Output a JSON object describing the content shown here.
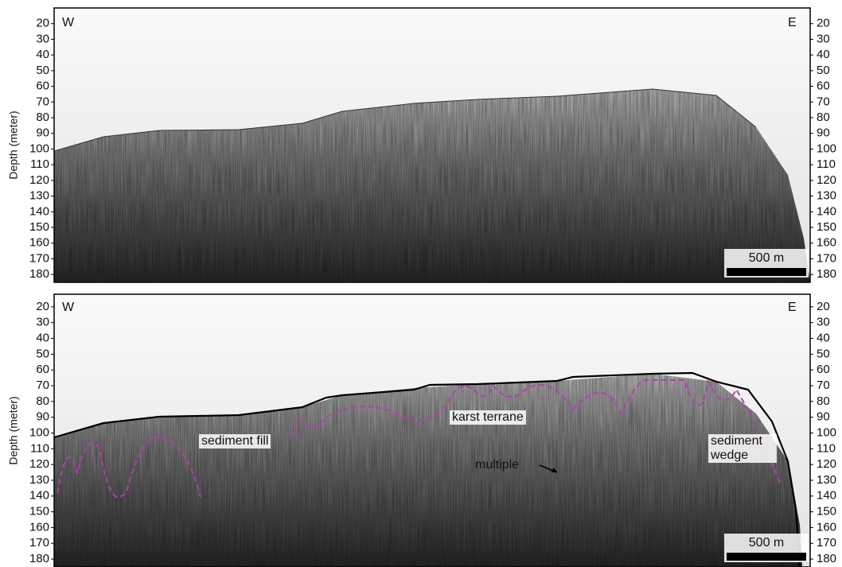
{
  "chart_data": [
    {
      "type": "profile",
      "ylabel": "Depth (meter)",
      "ylim": [
        10,
        185
      ],
      "inverted": true,
      "yticks": [
        20,
        30,
        40,
        50,
        60,
        70,
        80,
        90,
        100,
        110,
        120,
        130,
        140,
        150,
        160,
        170,
        180
      ],
      "annotations": [
        "W",
        "E"
      ],
      "scale_bar": "500 m"
    },
    {
      "type": "profile",
      "ylabel": "Depth (meter)",
      "ylim": [
        12,
        185
      ],
      "inverted": true,
      "yticks": [
        20,
        30,
        40,
        50,
        60,
        70,
        80,
        90,
        100,
        110,
        120,
        130,
        140,
        150,
        160,
        170,
        180
      ],
      "annotations": [
        "W",
        "E",
        "sediment fill",
        "karst terrane",
        "multiple",
        "sediment wedge"
      ],
      "scale_bar": "500 m"
    }
  ]
}
